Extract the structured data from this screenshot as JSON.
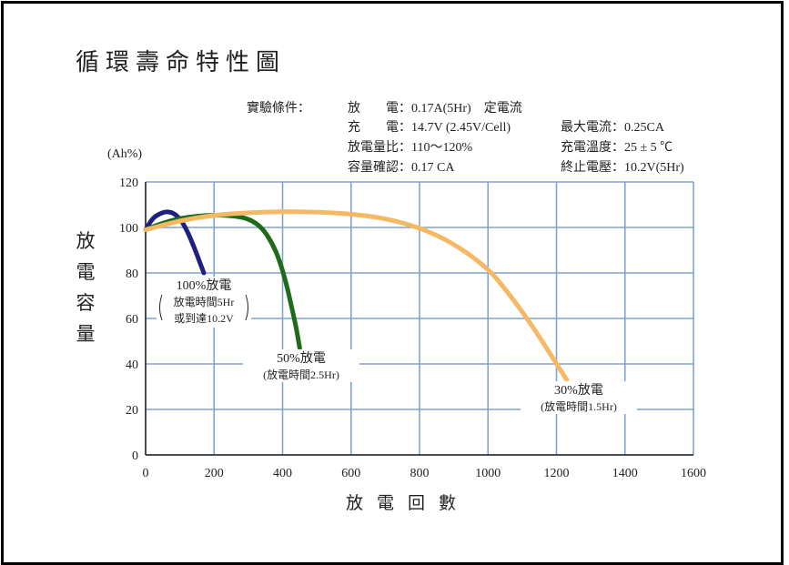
{
  "title": "循環壽命特性圖",
  "conditions": {
    "header": "實驗條件：",
    "lines_left": [
      "放　　電：0.17A(5Hr)　定電流",
      "充　　電：14.7V (2.45V/Cell)",
      "放電量比：110～120%",
      "容量確認：0.17 CA"
    ],
    "lines_right": [
      "最大電流：0.25CA",
      "充電溫度：25 ± 5 ℃",
      "終止電壓：10.2V(5Hr)"
    ]
  },
  "chart_data": {
    "type": "line",
    "ylabel": "放電容量",
    "yunit": "(Ah%)",
    "xlabel": "放電回數",
    "xlim": [
      0,
      1600
    ],
    "ylim": [
      0,
      120
    ],
    "xticks": [
      0,
      200,
      400,
      600,
      800,
      1000,
      1200,
      1400,
      1600
    ],
    "yticks": [
      0,
      20,
      40,
      60,
      80,
      100,
      120
    ],
    "grid": true,
    "series": [
      {
        "color": "#1f1f80",
        "x": [
          0,
          20,
          40,
          60,
          80,
          100,
          120,
          140,
          160,
          170
        ],
        "y": [
          99,
          104,
          106,
          107,
          106.5,
          104,
          99,
          92,
          84,
          80
        ]
      },
      {
        "color": "#1e6b1a",
        "x": [
          0,
          50,
          100,
          150,
          200,
          250,
          300,
          340,
          370,
          390,
          410,
          425,
          440,
          450
        ],
        "y": [
          99,
          102,
          104,
          105,
          105.5,
          105.2,
          104,
          100,
          93,
          86,
          76,
          66,
          56,
          47
        ]
      },
      {
        "color": "#f5b865",
        "x": [
          0,
          100,
          200,
          300,
          400,
          500,
          600,
          700,
          800,
          900,
          1000,
          1050,
          1100,
          1150,
          1200,
          1230
        ],
        "y": [
          99,
          103,
          105.5,
          106.5,
          107,
          106.8,
          106,
          104,
          100,
          93,
          82,
          73,
          63,
          52,
          40,
          33
        ]
      }
    ],
    "annotations": [
      {
        "lines": [
          "100%放電",
          "放電時間5Hr",
          "或到達10.2V"
        ]
      },
      {
        "lines": [
          "50%放電",
          "(放電時間2.5Hr)"
        ]
      },
      {
        "lines": [
          "30%放電",
          "(放電時間1.5Hr)"
        ]
      }
    ]
  }
}
